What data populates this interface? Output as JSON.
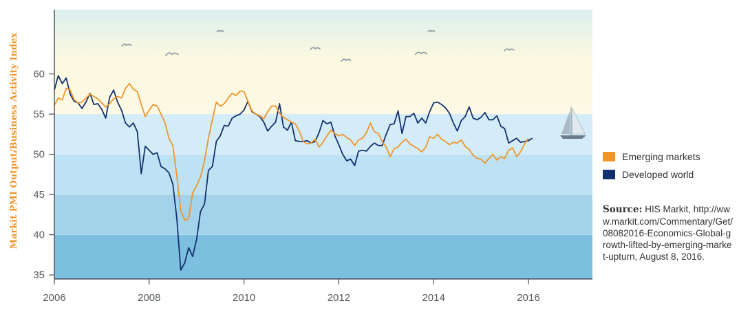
{
  "chart_data": {
    "type": "line",
    "ylabel": "Markit PMI Output/Business Activity Index",
    "xlim": [
      2006.0,
      2017.35
    ],
    "ylim": [
      34.5,
      68
    ],
    "x_ticks": [
      2006,
      2008,
      2010,
      2012,
      2014,
      2016
    ],
    "y_ticks": [
      35,
      40,
      45,
      50,
      55,
      60
    ],
    "x_tick_labels": [
      "2006",
      "2008",
      "2010",
      "2012",
      "2014",
      "2016"
    ],
    "y_tick_labels": [
      "35",
      "40",
      "45",
      "50",
      "55",
      "60"
    ],
    "legend_position": "right",
    "series": [
      {
        "name": "Emerging markets",
        "color": "#f0952a",
        "values": [
          56.1,
          57.0,
          56.8,
          58.2,
          58.0,
          56.8,
          56.4,
          56.5,
          57.0,
          57.5,
          57.2,
          56.9,
          56.4,
          55.9,
          56.3,
          56.9,
          57.2,
          57.0,
          58.2,
          58.8,
          58.1,
          57.8,
          56.2,
          54.7,
          55.5,
          56.2,
          56.0,
          55.0,
          53.9,
          52.0,
          51.1,
          47.3,
          43.0,
          41.8,
          42.0,
          45.2,
          46.1,
          47.2,
          49.2,
          52.0,
          54.3,
          56.5,
          56.0,
          56.3,
          57.0,
          57.6,
          57.3,
          57.9,
          57.8,
          56.6,
          55.4,
          55.0,
          54.8,
          54.4,
          55.3,
          56.0,
          56.0,
          55.1,
          54.6,
          54.3,
          54.0,
          53.8,
          52.9,
          51.6,
          51.3,
          51.4,
          51.9,
          50.9,
          51.5,
          52.3,
          53.0,
          52.6,
          52.3,
          52.5,
          52.1,
          51.8,
          51.1,
          51.8,
          52.0,
          52.7,
          53.9,
          52.8,
          52.6,
          51.6,
          50.9,
          49.7,
          50.7,
          50.9,
          51.5,
          51.9,
          51.3,
          51.0,
          50.7,
          50.3,
          50.9,
          52.2,
          52.0,
          52.5,
          51.9,
          51.6,
          51.2,
          51.5,
          51.4,
          51.8,
          51.0,
          50.6,
          49.9,
          49.5,
          49.4,
          48.9,
          49.5,
          50.0,
          49.3,
          49.7,
          49.5,
          50.5,
          50.8,
          49.7,
          50.3,
          51.3,
          52.0
        ]
      },
      {
        "name": "Developed world",
        "color": "#13316e",
        "values": [
          58.0,
          59.8,
          58.8,
          59.5,
          57.5,
          56.6,
          56.4,
          55.7,
          56.5,
          57.6,
          56.2,
          56.3,
          55.6,
          54.5,
          57.1,
          58.0,
          56.5,
          55.5,
          53.9,
          53.4,
          53.9,
          52.8,
          47.6,
          51.0,
          50.5,
          50.0,
          50.2,
          48.5,
          48.2,
          47.7,
          46.3,
          42.0,
          35.6,
          36.5,
          38.4,
          37.3,
          39.4,
          42.9,
          43.8,
          48.0,
          48.5,
          51.6,
          52.3,
          53.6,
          53.5,
          54.5,
          54.8,
          55.0,
          55.5,
          56.6,
          55.3,
          55.0,
          54.7,
          54.0,
          52.9,
          53.5,
          54.0,
          56.3,
          53.4,
          53.0,
          54.0,
          51.7,
          51.6,
          51.6,
          51.7,
          51.4,
          51.6,
          52.7,
          54.2,
          53.8,
          54.0,
          52.3,
          51.2,
          50.0,
          49.2,
          49.4,
          48.6,
          50.4,
          50.5,
          50.4,
          51.0,
          51.4,
          51.1,
          51.1,
          52.5,
          53.7,
          53.8,
          55.4,
          52.6,
          54.7,
          54.7,
          55.1,
          53.9,
          54.5,
          53.9,
          55.3,
          56.4,
          56.5,
          56.2,
          55.8,
          55.1,
          53.9,
          52.9,
          54.2,
          54.7,
          55.9,
          54.5,
          54.3,
          54.6,
          55.2,
          54.3,
          54.3,
          54.8,
          53.5,
          53.2,
          51.4,
          51.7,
          52.0,
          51.5,
          51.6,
          51.7,
          52.0
        ]
      }
    ]
  },
  "legend": {
    "items": [
      {
        "label": "Emerging markets",
        "color": "#f0952a"
      },
      {
        "label": "Developed world",
        "color": "#13316e"
      }
    ]
  },
  "source": {
    "label": "Source:",
    "text": "HIS Markit, http://www.markit.com/Commentary/Get/08082016-Economics-Global-growth-lifted-by-emerging-market-upturn, August 8, 2016."
  }
}
